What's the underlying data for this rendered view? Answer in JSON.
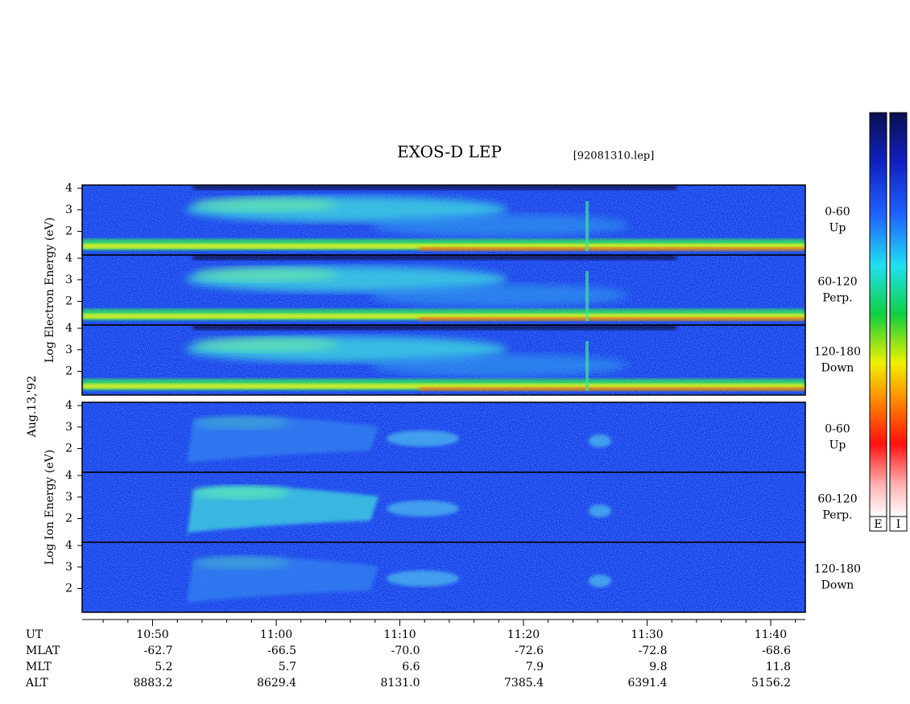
{
  "chart_data": {
    "type": "spectrogram",
    "title": "EXOS-D LEP",
    "subtitle": "[92081310.lep]",
    "date": "Aug.13,'92",
    "groups": [
      {
        "label": "Log Electron Energy (eV)",
        "panels": [
          [
            "0-60",
            "Up"
          ],
          [
            "60-120",
            "Perp."
          ],
          [
            "120-180",
            "Down"
          ]
        ]
      },
      {
        "label": "Log Ion Energy (eV)",
        "panels": [
          [
            "0-60",
            "Up"
          ],
          [
            "60-120",
            "Perp."
          ],
          [
            "120-180",
            "Down"
          ]
        ]
      }
    ],
    "ylim": [
      0.9,
      4.15
    ],
    "yticks": [
      2,
      3,
      4
    ],
    "xlim": [
      644.3,
      702.8
    ],
    "xticks": [
      {
        "value": 650,
        "label": "10:50"
      },
      {
        "value": 660,
        "label": "11:00"
      },
      {
        "value": 670,
        "label": "11:10"
      },
      {
        "value": 680,
        "label": "11:20"
      },
      {
        "value": 690,
        "label": "11:30"
      },
      {
        "value": 700,
        "label": "11:40"
      }
    ],
    "colorbars": [
      "E",
      "I"
    ],
    "ephemeris": [
      {
        "name": "UT"
      },
      {
        "name": "MLAT",
        "values": [
          -62.7,
          -66.5,
          {
            "value": -70,
            "label": "-70.0"
          },
          -72.6,
          -72.8,
          -68.6
        ]
      },
      {
        "name": "MLT",
        "values": [
          5.2,
          5.7,
          6.6,
          7.9,
          9.8,
          11.8
        ]
      },
      {
        "name": "ALT",
        "values": [
          8883.2,
          8629.4,
          {
            "value": 8131,
            "label": "8131.0"
          },
          7385.4,
          6391.4,
          5156.2
        ]
      }
    ]
  }
}
